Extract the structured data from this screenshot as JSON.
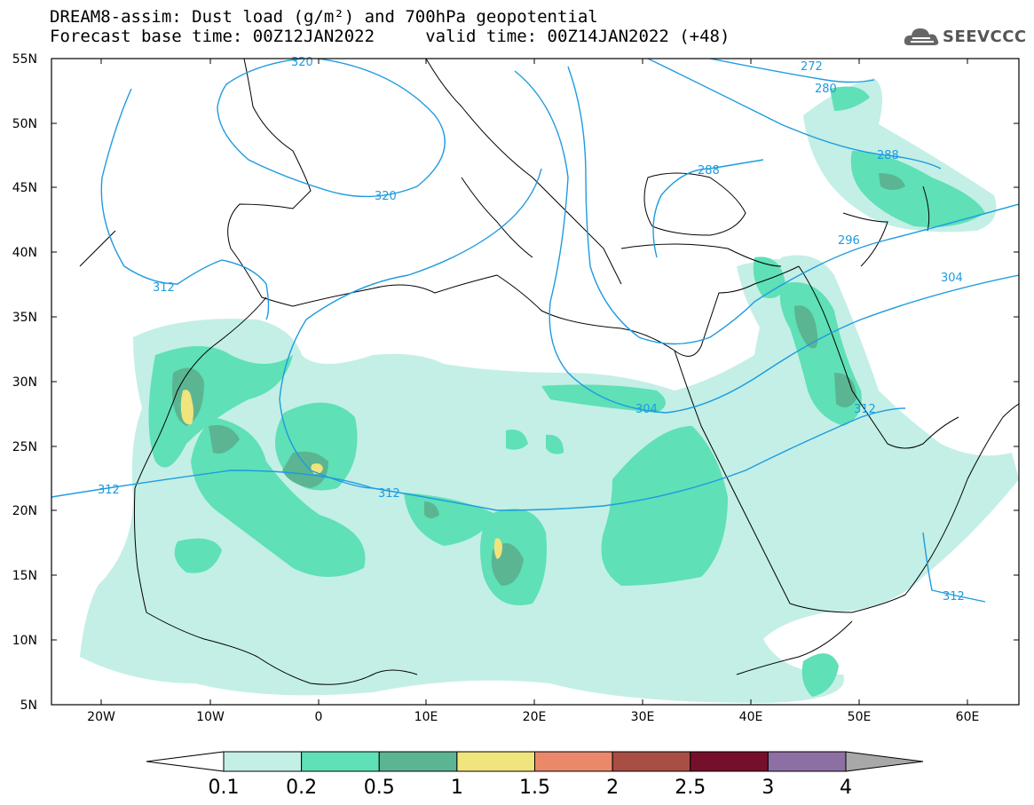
{
  "header": {
    "title_line1": "DREAM8-assim: Dust load (g/m²) and 700hPa geopotential",
    "title_line2": "Forecast base time: 00Z12JAN2022     valid time: 00Z14JAN2022 (+48)",
    "logo_text": "SEEVCCC"
  },
  "axes": {
    "lat_labels": [
      "55N",
      "50N",
      "45N",
      "40N",
      "35N",
      "30N",
      "25N",
      "20N",
      "15N",
      "10N",
      "5N"
    ],
    "lon_labels": [
      "20W",
      "10W",
      "0",
      "10E",
      "20E",
      "30E",
      "40E",
      "50E",
      "60E"
    ]
  },
  "contour_labels": [
    "320",
    "320",
    "272",
    "280",
    "288",
    "288",
    "296",
    "304",
    "304",
    "312",
    "312",
    "312",
    "312",
    "312"
  ],
  "colorbar": {
    "ticks": [
      "0.1",
      "0.2",
      "0.5",
      "1",
      "1.5",
      "2",
      "2.5",
      "3",
      "4"
    ],
    "colors": [
      "#c3efe6",
      "#5fe0b7",
      "#5bb592",
      "#f0e47c",
      "#e9896a",
      "#a84e45",
      "#76102a",
      "#8e6fa3"
    ],
    "under_color": "#ffffff",
    "over_color": "#a8a8a8"
  },
  "colors": {
    "contour": "#1e9be0",
    "coast": "#000000"
  }
}
